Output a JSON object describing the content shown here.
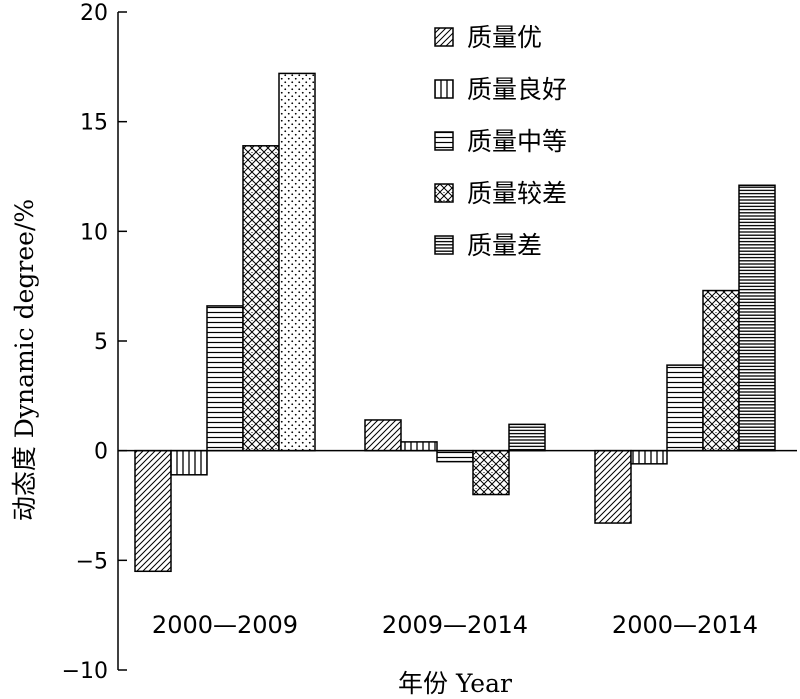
{
  "chart_data": {
    "type": "bar",
    "categories": [
      "2000—2009",
      "2009—2014",
      "2000—2014"
    ],
    "series": [
      {
        "name": "质量优",
        "values": [
          -5.5,
          1.4,
          -3.3
        ],
        "pattern": "diagonal"
      },
      {
        "name": "质量良好",
        "values": [
          -1.1,
          0.4,
          -0.6
        ],
        "pattern": "vertical"
      },
      {
        "name": "质量中等",
        "values": [
          6.6,
          -0.5,
          3.9
        ],
        "pattern": "horizontal"
      },
      {
        "name": "质量较差",
        "values": [
          13.9,
          -2.0,
          7.3
        ],
        "pattern": "crosshatch"
      },
      {
        "name": "质量差",
        "values": [
          17.2,
          1.2,
          12.1
        ],
        "pattern": "dots-and-dense-horizontal"
      }
    ],
    "ylim": [
      -10,
      20
    ],
    "yticks": [
      -10,
      -5,
      0,
      5,
      10,
      15,
      20
    ],
    "ytick_labels": [
      "−10",
      "−5",
      "0",
      "5",
      "10",
      "15",
      "20"
    ],
    "ylabel": "动态度 Dynamic degree/%",
    "xlabel": "年份 Year",
    "title": "",
    "grid": false,
    "legend_position": "top-right"
  }
}
